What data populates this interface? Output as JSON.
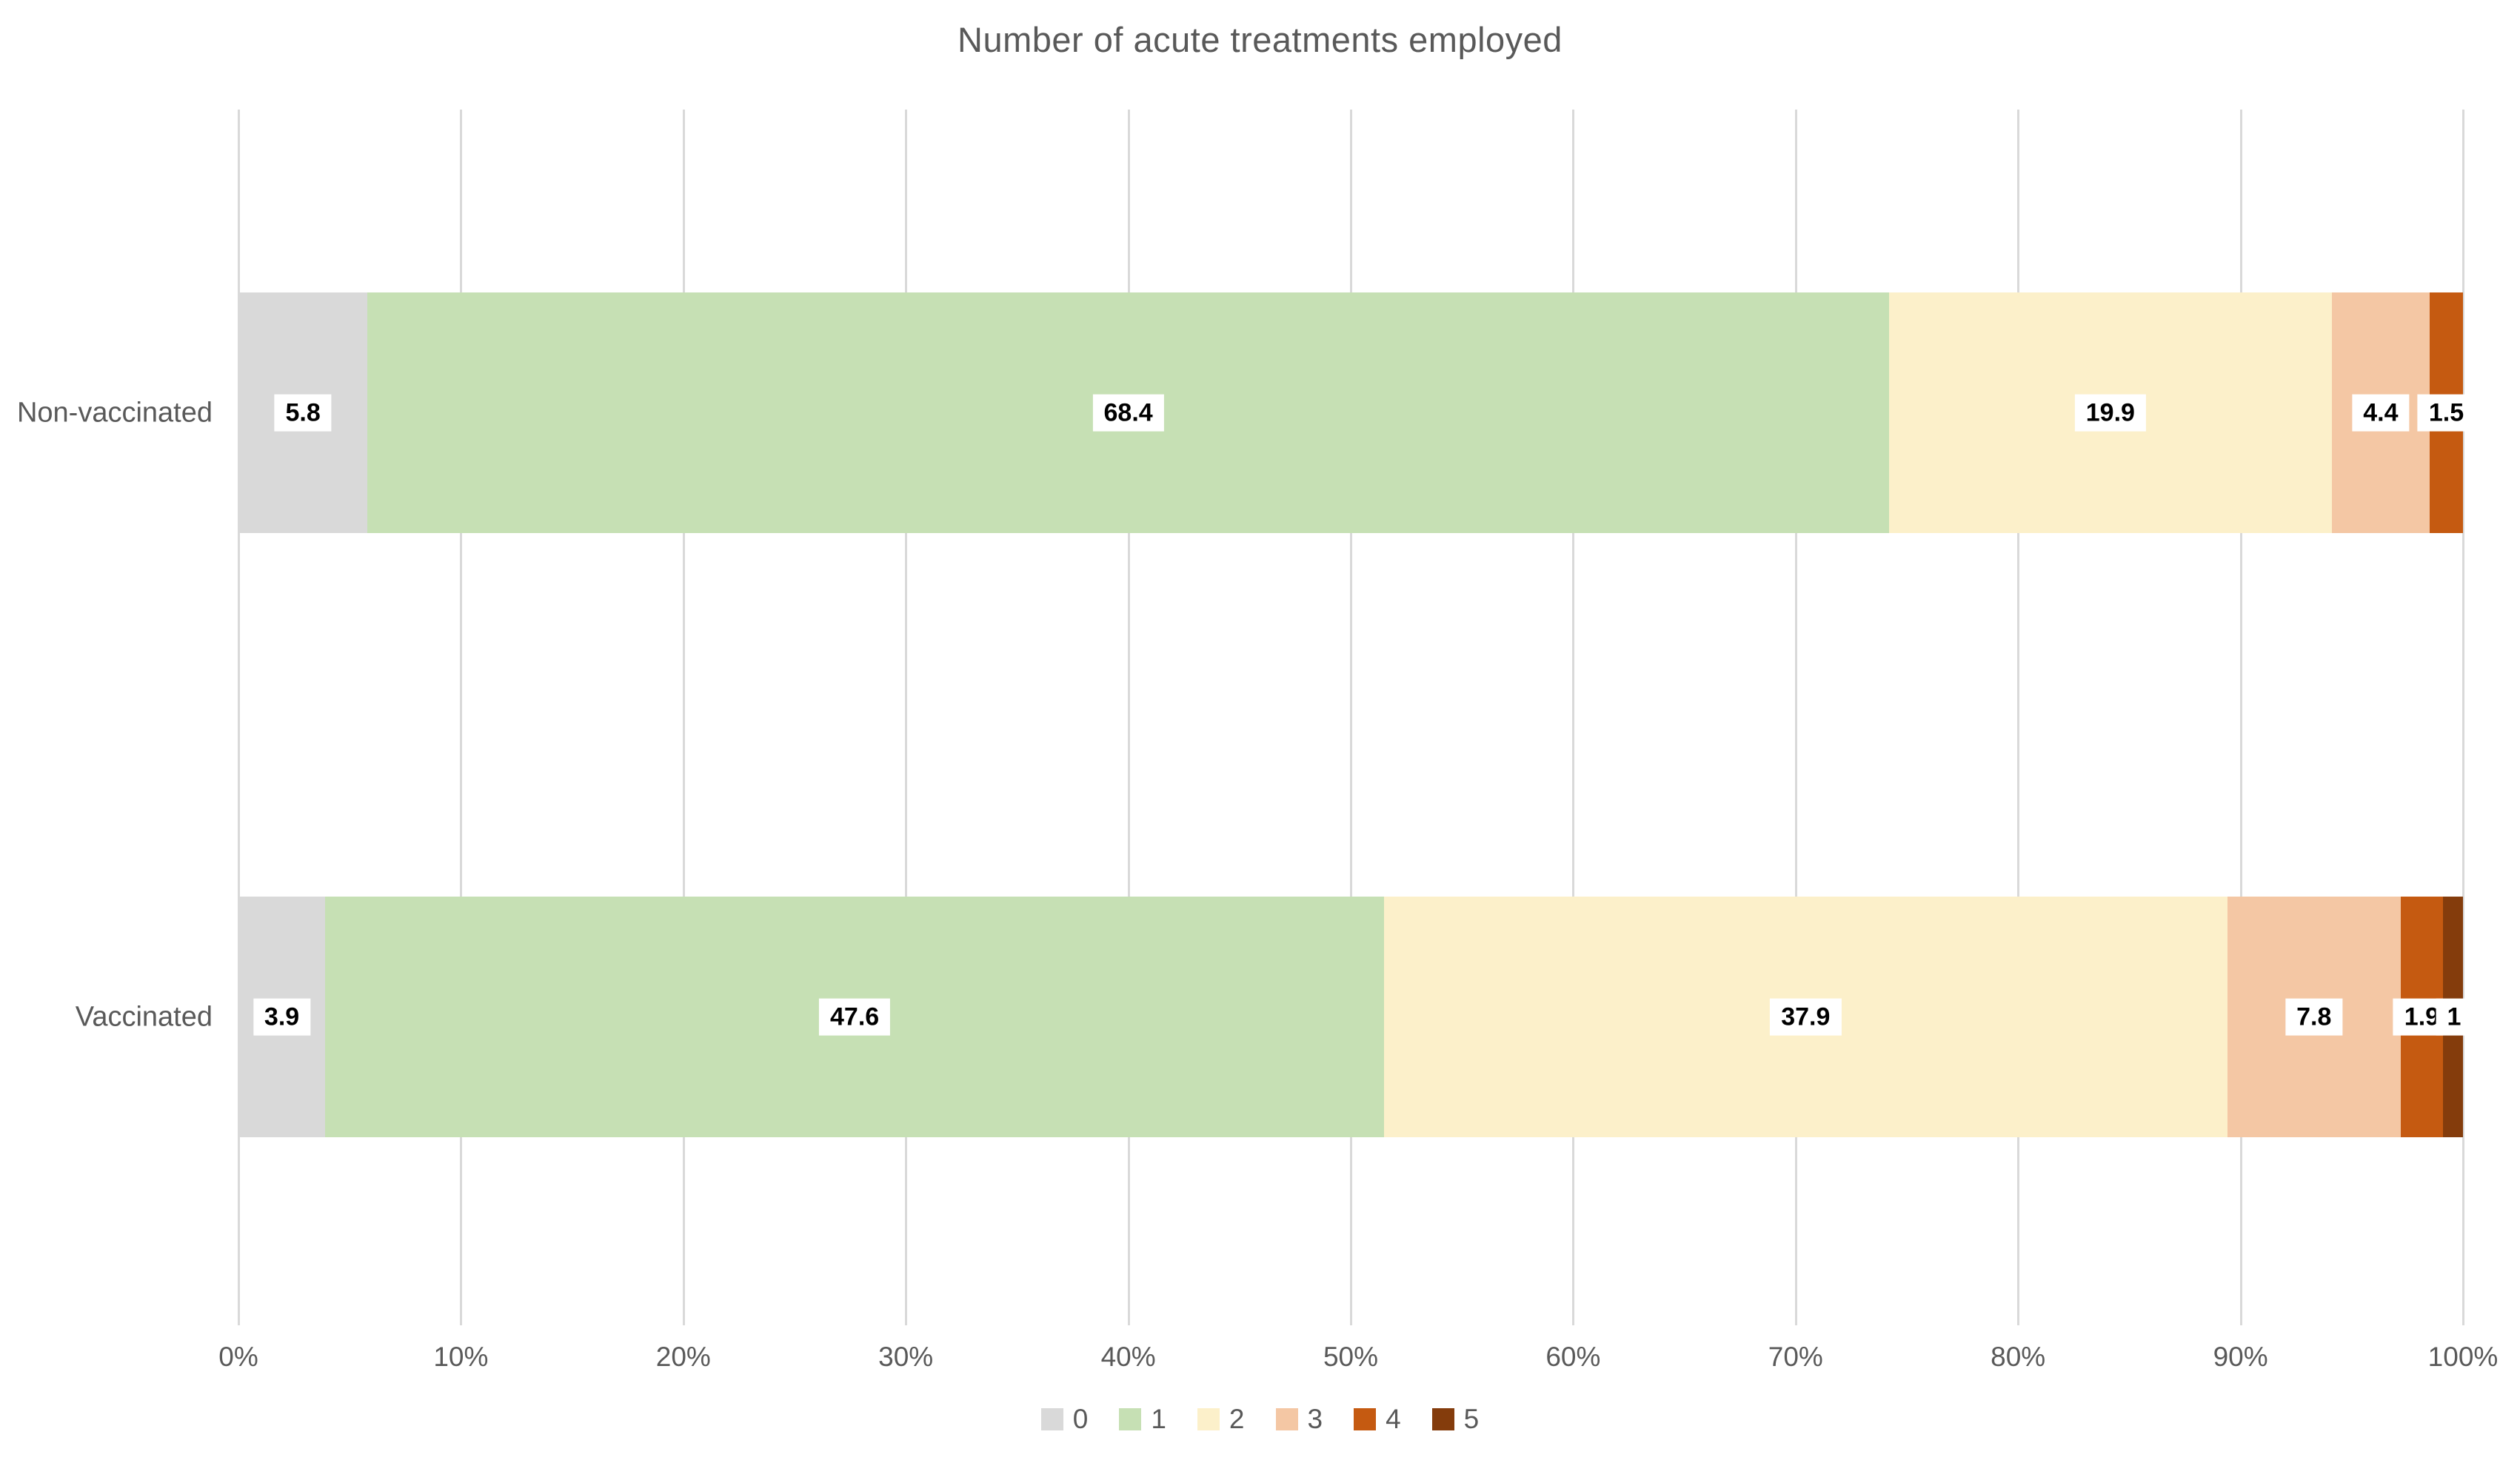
{
  "chart_data": {
    "type": "bar",
    "orientation": "horizontal",
    "stacked": true,
    "title": "Number of acute treatments employed",
    "categories": [
      "Non-vaccinated",
      "Vaccinated"
    ],
    "series": [
      {
        "name": "0",
        "color": "#d9d9d9",
        "values": [
          5.8,
          3.9
        ]
      },
      {
        "name": "1",
        "color": "#c6e0b4",
        "values": [
          68.4,
          47.6
        ]
      },
      {
        "name": "2",
        "color": "#fcf0ca",
        "values": [
          19.9,
          37.9
        ]
      },
      {
        "name": "3",
        "color": "#f4c7a4",
        "values": [
          4.4,
          7.8
        ]
      },
      {
        "name": "4",
        "color": "#c55a11",
        "values": [
          1.5,
          1.9
        ]
      },
      {
        "name": "5",
        "color": "#843c0c",
        "values": [
          0,
          1
        ]
      }
    ],
    "labels": [
      [
        "5.8",
        "68.4",
        "19.9",
        "4.4",
        "1.5",
        ""
      ],
      [
        "3.9",
        "47.6",
        "37.9",
        "7.8",
        "1.9",
        "1"
      ]
    ],
    "x_ticks": [
      "0%",
      "10%",
      "20%",
      "30%",
      "40%",
      "50%",
      "60%",
      "70%",
      "80%",
      "90%",
      "100%"
    ],
    "xlim": [
      0,
      100
    ],
    "grid": true,
    "legend_position": "bottom",
    "colors": {
      "background": "#ffffff",
      "gridline": "#d9d9d9",
      "text": "#595959",
      "data_label_text": "#000000",
      "data_label_bg": "#ffffff"
    }
  }
}
